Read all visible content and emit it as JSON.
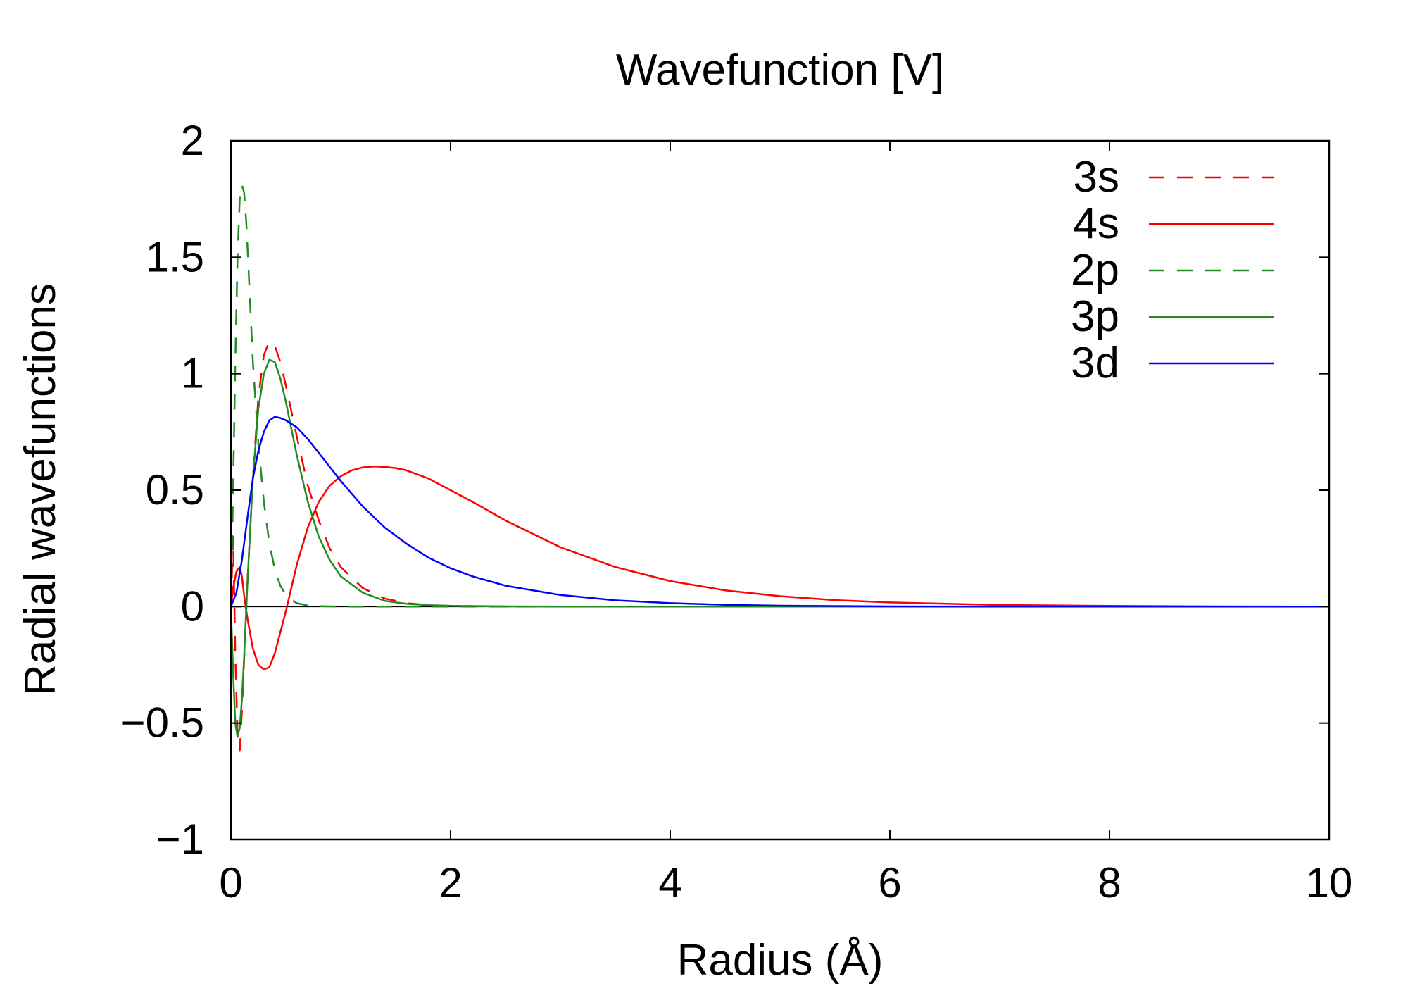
{
  "chart_data": {
    "type": "line",
    "title": "Wavefunction [V]",
    "xlabel": "Radius (Å)",
    "ylabel": "Radial wavefunctions",
    "xlim": [
      0,
      10
    ],
    "ylim": [
      -1,
      2
    ],
    "xticks": [
      0,
      2,
      4,
      6,
      8,
      10
    ],
    "xtick_labels": [
      "0",
      "2",
      "4",
      "6",
      "8",
      "10"
    ],
    "yticks": [
      -1,
      -0.5,
      0,
      0.5,
      1,
      1.5,
      2
    ],
    "ytick_labels": [
      "−1",
      "−0.5",
      "0",
      "0.5",
      "1",
      "1.5",
      "2"
    ],
    "grid": false,
    "legend_position": "top-right",
    "zero_line": true,
    "series": [
      {
        "name": "3s",
        "color": "#ff0000",
        "dash": "dashed",
        "x": [
          0,
          0.02,
          0.04,
          0.06,
          0.08,
          0.1,
          0.15,
          0.2,
          0.25,
          0.3,
          0.35,
          0.4,
          0.45,
          0.5,
          0.6,
          0.7,
          0.8,
          0.9,
          1.0,
          1.2,
          1.4,
          1.6,
          1.8,
          2.0,
          2.5,
          3.0,
          4.0,
          6.0,
          10.0
        ],
        "y": [
          0,
          0.3,
          -0.2,
          -0.55,
          -0.62,
          -0.45,
          0.1,
          0.55,
          0.9,
          1.08,
          1.14,
          1.12,
          1.05,
          0.95,
          0.73,
          0.52,
          0.37,
          0.25,
          0.17,
          0.08,
          0.035,
          0.015,
          0.006,
          0.003,
          0.0005,
          0,
          0,
          0,
          0
        ]
      },
      {
        "name": "4s",
        "color": "#ff0000",
        "dash": "solid",
        "x": [
          0,
          0.02,
          0.05,
          0.08,
          0.1,
          0.12,
          0.15,
          0.2,
          0.25,
          0.3,
          0.35,
          0.4,
          0.5,
          0.6,
          0.7,
          0.8,
          0.9,
          1.0,
          1.1,
          1.2,
          1.3,
          1.4,
          1.5,
          1.6,
          1.8,
          2.0,
          2.2,
          2.5,
          3.0,
          3.5,
          4.0,
          4.5,
          5.0,
          5.5,
          6.0,
          7.0,
          8.0,
          9.0,
          10.0
        ],
        "y": [
          0,
          0.08,
          0.15,
          0.17,
          0.13,
          0.05,
          -0.05,
          -0.18,
          -0.25,
          -0.27,
          -0.26,
          -0.2,
          -0.02,
          0.18,
          0.34,
          0.45,
          0.52,
          0.56,
          0.585,
          0.598,
          0.602,
          0.6,
          0.595,
          0.585,
          0.55,
          0.5,
          0.45,
          0.37,
          0.255,
          0.17,
          0.11,
          0.07,
          0.045,
          0.028,
          0.018,
          0.007,
          0.003,
          0.001,
          0
        ]
      },
      {
        "name": "2p",
        "color": "#228b22",
        "dash": "dashed",
        "x": [
          0,
          0.02,
          0.04,
          0.06,
          0.08,
          0.1,
          0.12,
          0.14,
          0.16,
          0.18,
          0.2,
          0.25,
          0.3,
          0.35,
          0.4,
          0.45,
          0.5,
          0.55,
          0.6,
          0.7,
          0.8,
          1.0,
          1.5,
          2.0,
          3.0,
          10.0
        ],
        "y": [
          0,
          0.5,
          1.05,
          1.5,
          1.75,
          1.81,
          1.78,
          1.65,
          1.45,
          1.25,
          1.05,
          0.7,
          0.45,
          0.27,
          0.16,
          0.09,
          0.05,
          0.03,
          0.015,
          0.005,
          0.002,
          0,
          0,
          0,
          0,
          0
        ]
      },
      {
        "name": "3p",
        "color": "#228b22",
        "dash": "solid",
        "x": [
          0,
          0.02,
          0.04,
          0.06,
          0.08,
          0.1,
          0.12,
          0.15,
          0.2,
          0.25,
          0.3,
          0.35,
          0.4,
          0.45,
          0.5,
          0.6,
          0.7,
          0.8,
          0.9,
          1.0,
          1.2,
          1.4,
          1.6,
          1.8,
          2.0,
          2.5,
          3.0,
          4.0,
          10.0
        ],
        "y": [
          0,
          -0.28,
          -0.5,
          -0.56,
          -0.52,
          -0.4,
          -0.22,
          0.1,
          0.55,
          0.85,
          1.0,
          1.06,
          1.05,
          0.98,
          0.88,
          0.65,
          0.45,
          0.3,
          0.2,
          0.13,
          0.06,
          0.025,
          0.012,
          0.006,
          0.003,
          0.001,
          0,
          0,
          0
        ]
      },
      {
        "name": "3d",
        "color": "#0000ff",
        "dash": "solid",
        "x": [
          0,
          0.05,
          0.1,
          0.15,
          0.2,
          0.25,
          0.3,
          0.35,
          0.4,
          0.45,
          0.5,
          0.6,
          0.7,
          0.8,
          1.0,
          1.2,
          1.4,
          1.6,
          1.8,
          2.0,
          2.2,
          2.5,
          3.0,
          3.5,
          4.0,
          4.5,
          5.0,
          6.0,
          7.0,
          8.0,
          10.0
        ],
        "y": [
          0,
          0.06,
          0.2,
          0.38,
          0.55,
          0.67,
          0.75,
          0.8,
          0.815,
          0.81,
          0.8,
          0.77,
          0.72,
          0.66,
          0.54,
          0.43,
          0.34,
          0.27,
          0.21,
          0.165,
          0.13,
          0.09,
          0.05,
          0.027,
          0.015,
          0.008,
          0.004,
          0.001,
          0,
          0,
          0
        ]
      }
    ]
  }
}
